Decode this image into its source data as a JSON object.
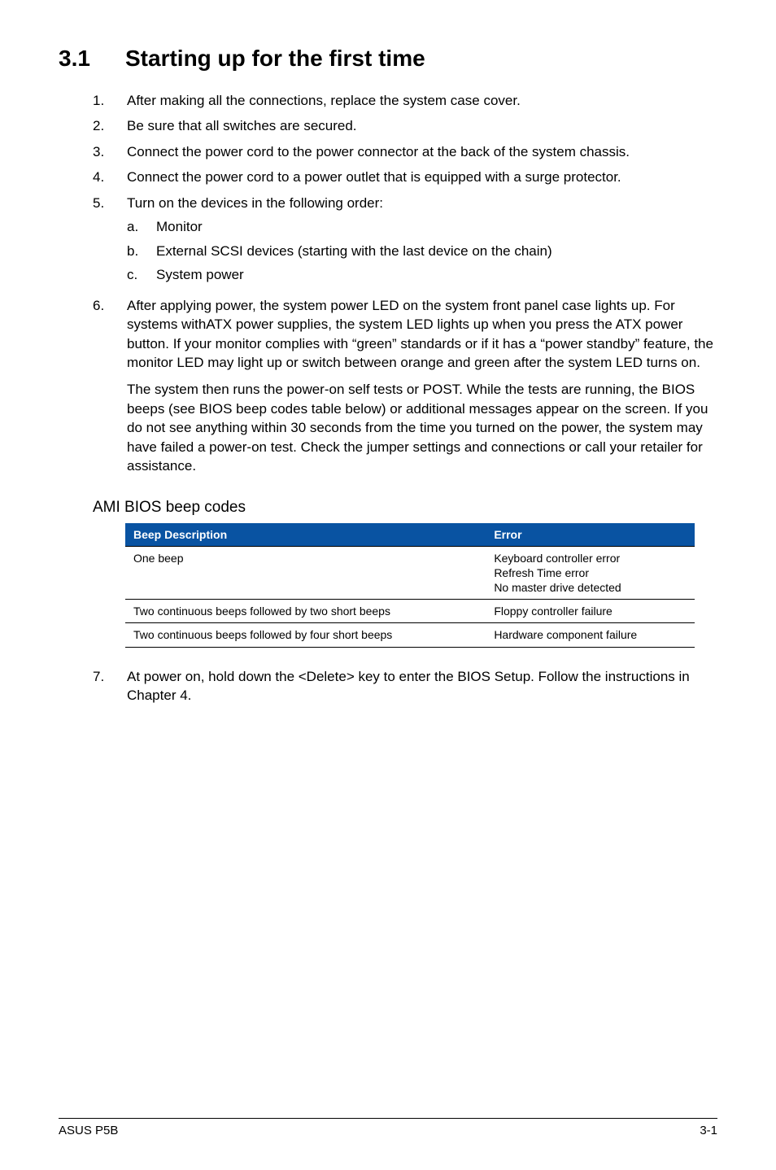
{
  "heading": {
    "number": "3.1",
    "title": "Starting up for the first time"
  },
  "items": {
    "i1": {
      "num": "1.",
      "text": "After making all the connections, replace the system case cover."
    },
    "i2": {
      "num": "2.",
      "text": "Be sure that all switches are secured."
    },
    "i3": {
      "num": "3.",
      "text": "Connect the power cord to the power connector at the back of the system chassis."
    },
    "i4": {
      "num": "4.",
      "text": "Connect the power cord to a power outlet that is equipped with a surge protector."
    },
    "i5": {
      "num": "5.",
      "text": "Turn on the devices in the following order:",
      "sub": {
        "a": {
          "num": "a.",
          "text": "Monitor"
        },
        "b": {
          "num": "b.",
          "text": "External SCSI devices (starting with the last device on the chain)"
        },
        "c": {
          "num": "c.",
          "text": "System power"
        }
      }
    },
    "i6": {
      "num": "6.",
      "text": "After applying power, the system power LED on the system front panel case lights up. For systems withATX power supplies, the system LED lights up when you press the ATX power button. If your monitor complies with “green” standards or if it has a “power standby” feature, the monitor LED may light up or switch between orange and green after the system LED turns on.",
      "para2": "The system then runs the power-on self tests or POST. While the tests are running, the BIOS beeps (see BIOS beep codes table below) or additional messages appear on the screen. If you do not see anything within 30 seconds from the time you turned on the power, the system may have failed a power-on test. Check the jumper settings and connections or call your retailer for assistance."
    },
    "i7": {
      "num": "7.",
      "text": "At power on, hold down the <Delete> key to enter the BIOS Setup. Follow the instructions in Chapter 4."
    }
  },
  "subheading": "AMI BIOS beep codes",
  "table": {
    "type": "table",
    "header_bg": "#0953a2",
    "header_fg": "#ffffff",
    "border_color": "#000000",
    "font_size_pt": 10,
    "columns": [
      "Beep Description",
      "Error"
    ],
    "col_widths": [
      "48%",
      "52%"
    ],
    "rows": [
      [
        "One beep",
        "Keyboard controller error\nRefresh Time error\nNo master drive detected"
      ],
      [
        "Two continuous beeps followed by two short beeps",
        "Floppy controller failure"
      ],
      [
        "Two continuous beeps followed by four short beeps",
        "Hardware component failure"
      ]
    ]
  },
  "footer": {
    "left": "ASUS P5B",
    "right": "3-1"
  }
}
